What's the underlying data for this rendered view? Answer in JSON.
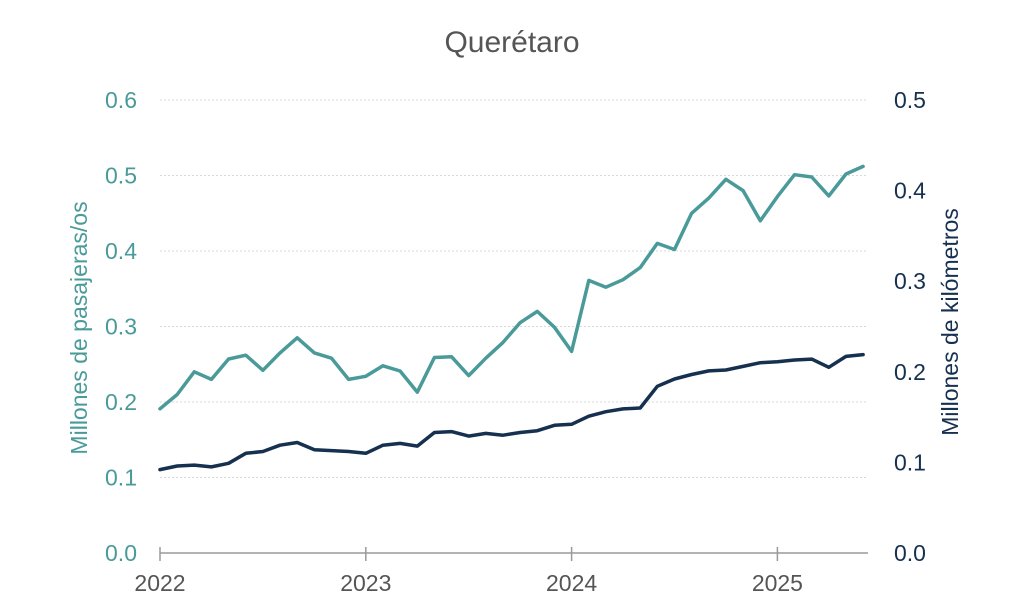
{
  "chart_data": {
    "type": "line",
    "title": "Querétaro",
    "ylabel_left": "Millones de pasajeras/os",
    "ylabel_right": "Millones de kilómetros",
    "ylim_left": [
      0,
      0.6
    ],
    "ylim_right": [
      0,
      0.5
    ],
    "yticks_left": [
      "0.0",
      "0.1",
      "0.2",
      "0.3",
      "0.4",
      "0.5",
      "0.6"
    ],
    "yticks_right": [
      "0.0",
      "0.1",
      "0.2",
      "0.3",
      "0.4",
      "0.5"
    ],
    "xticks": [
      "2022",
      "2023",
      "2024",
      "2025"
    ],
    "grid": true,
    "colors": {
      "passengers": "#4a9a9a",
      "kilometers": "#16304f"
    },
    "x": [
      "2022-01",
      "2022-02",
      "2022-03",
      "2022-04",
      "2022-05",
      "2022-06",
      "2022-07",
      "2022-08",
      "2022-09",
      "2022-10",
      "2022-11",
      "2022-12",
      "2023-01",
      "2023-02",
      "2023-03",
      "2023-04",
      "2023-05",
      "2023-06",
      "2023-07",
      "2023-08",
      "2023-09",
      "2023-10",
      "2023-11",
      "2023-12",
      "2024-01",
      "2024-02",
      "2024-03",
      "2024-04",
      "2024-05",
      "2024-06",
      "2024-07",
      "2024-08",
      "2024-09",
      "2024-10",
      "2024-11",
      "2024-12",
      "2025-01",
      "2025-02",
      "2025-03",
      "2025-04",
      "2025-05",
      "2025-06"
    ],
    "series": [
      {
        "axis": "left",
        "values": [
          0.191,
          0.21,
          0.24,
          0.23,
          0.257,
          0.262,
          0.242,
          0.265,
          0.285,
          0.265,
          0.258,
          0.23,
          0.234,
          0.248,
          0.241,
          0.213,
          0.259,
          0.26,
          0.235,
          0.258,
          0.279,
          0.305,
          0.32,
          0.299,
          0.267,
          0.361,
          0.352,
          0.362,
          0.378,
          0.41,
          0.402,
          0.45,
          0.47,
          0.495,
          0.48,
          0.44,
          0.472,
          0.501,
          0.498,
          0.473,
          0.502,
          0.512
        ]
      },
      {
        "axis": "right",
        "values": [
          0.092,
          0.096,
          0.097,
          0.095,
          0.099,
          0.11,
          0.112,
          0.119,
          0.122,
          0.114,
          0.113,
          0.112,
          0.11,
          0.119,
          0.121,
          0.118,
          0.133,
          0.134,
          0.129,
          0.132,
          0.13,
          0.133,
          0.135,
          0.141,
          0.142,
          0.151,
          0.156,
          0.159,
          0.16,
          0.184,
          0.192,
          0.197,
          0.201,
          0.202,
          0.206,
          0.21,
          0.211,
          0.213,
          0.214,
          0.205,
          0.217,
          0.219
        ]
      }
    ]
  }
}
